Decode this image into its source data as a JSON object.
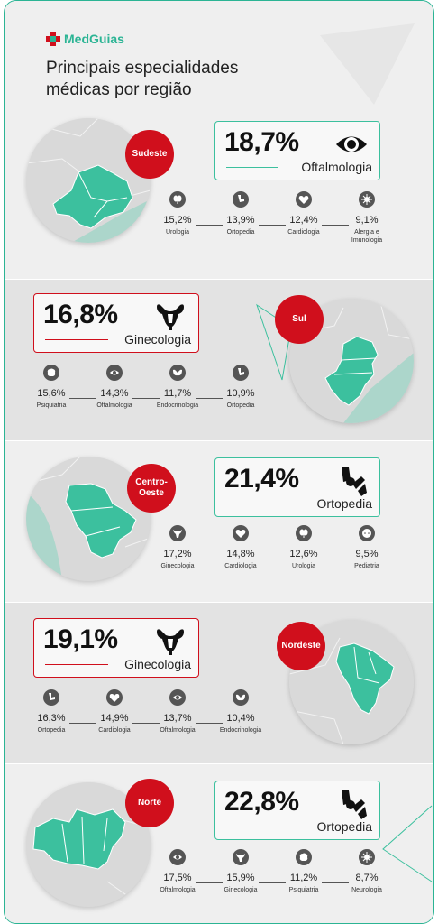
{
  "brand": {
    "name": "MedGuias"
  },
  "title": {
    "line1": "Principais especialidades",
    "line2": "médicas por região"
  },
  "regions": [
    {
      "name": "Sudeste",
      "percent": "18,7%",
      "specialty": "Oftalmologia",
      "icon": "eye-icon",
      "stats": [
        {
          "value": "15,2%",
          "label": "Urologia",
          "icon": "kidney-icon"
        },
        {
          "value": "13,9%",
          "label": "Ortopedia",
          "icon": "knee-icon"
        },
        {
          "value": "12,4%",
          "label": "Cardiologia",
          "icon": "heart-icon"
        },
        {
          "value": "9,1%",
          "label": "Alergia e Imunologia",
          "icon": "virus-icon"
        }
      ]
    },
    {
      "name": "Sul",
      "percent": "16,8%",
      "specialty": "Ginecologia",
      "icon": "uterus-icon",
      "stats": [
        {
          "value": "15,6%",
          "label": "Psiquiatria",
          "icon": "brain-icon"
        },
        {
          "value": "14,3%",
          "label": "Oftalmologia",
          "icon": "eye-icon"
        },
        {
          "value": "11,7%",
          "label": "Endocrinologia",
          "icon": "thyroid-icon"
        },
        {
          "value": "10,9%",
          "label": "Ortopedia",
          "icon": "knee-icon"
        }
      ]
    },
    {
      "name": "Centro-Oeste",
      "percent": "21,4%",
      "specialty": "Ortopedia",
      "icon": "knee-icon",
      "stats": [
        {
          "value": "17,2%",
          "label": "Ginecologia",
          "icon": "uterus-icon"
        },
        {
          "value": "14,8%",
          "label": "Cardiologia",
          "icon": "heart-icon"
        },
        {
          "value": "12,6%",
          "label": "Urologia",
          "icon": "kidney-icon"
        },
        {
          "value": "9,5%",
          "label": "Pediatria",
          "icon": "baby-icon"
        }
      ]
    },
    {
      "name": "Nordeste",
      "percent": "19,1%",
      "specialty": "Ginecologia",
      "icon": "uterus-icon",
      "stats": [
        {
          "value": "16,3%",
          "label": "Ortopedia",
          "icon": "knee-icon"
        },
        {
          "value": "14,9%",
          "label": "Cardiologia",
          "icon": "heart-icon"
        },
        {
          "value": "13,7%",
          "label": "Oftalmologia",
          "icon": "eye-icon"
        },
        {
          "value": "10,4%",
          "label": "Endocrinologia",
          "icon": "thyroid-icon"
        }
      ]
    },
    {
      "name": "Norte",
      "percent": "22,8%",
      "specialty": "Ortopedia",
      "icon": "knee-icon",
      "stats": [
        {
          "value": "17,5%",
          "label": "Oftalmologia",
          "icon": "eye-icon"
        },
        {
          "value": "15,9%",
          "label": "Ginecologia",
          "icon": "uterus-icon"
        },
        {
          "value": "11,2%",
          "label": "Psiquiatria",
          "icon": "brain-icon"
        },
        {
          "value": "8,7%",
          "label": "Neurologia",
          "icon": "virus-icon"
        }
      ]
    }
  ],
  "colors": {
    "accent": "#2bb494",
    "red": "#d00f1c",
    "map_green": "#3cc09e",
    "map_gray": "#d9d9d9"
  }
}
